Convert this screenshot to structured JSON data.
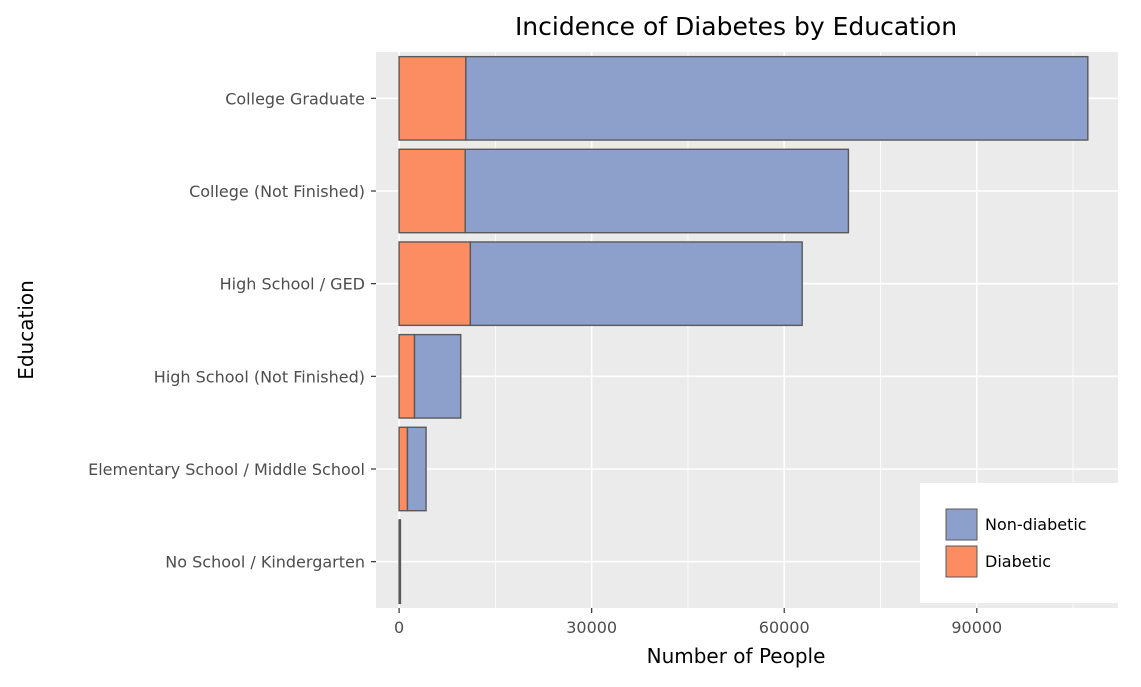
{
  "chart_data": {
    "type": "bar",
    "orientation": "horizontal",
    "stacked": true,
    "title": "Incidence of Diabetes by Education",
    "xlabel": "Number of People",
    "ylabel": "Education",
    "categories": [
      "College Graduate",
      "College (Not Finished)",
      "High School / GED",
      "High School (Not Finished)",
      "Elementary School / Middle School",
      "No School / Kindergarten"
    ],
    "series": [
      {
        "name": "Diabetic",
        "color": "#fc8d62",
        "values": [
          10400,
          10300,
          11100,
          2400,
          1300,
          130
        ]
      },
      {
        "name": "Non-diabetic",
        "color": "#8da0cb",
        "values": [
          96900,
          59700,
          51700,
          7200,
          2900,
          60
        ]
      }
    ],
    "xlim": [
      -3600,
      112000
    ],
    "xticks": [
      0,
      30000,
      60000,
      90000
    ],
    "xtick_labels": [
      "0",
      "30000",
      "60000",
      "90000"
    ],
    "grid": true,
    "legend_position": "bottom-right",
    "legend": [
      {
        "name": "Non-diabetic",
        "color": "#8da0cb"
      },
      {
        "name": "Diabetic",
        "color": "#fc8d62"
      }
    ]
  }
}
